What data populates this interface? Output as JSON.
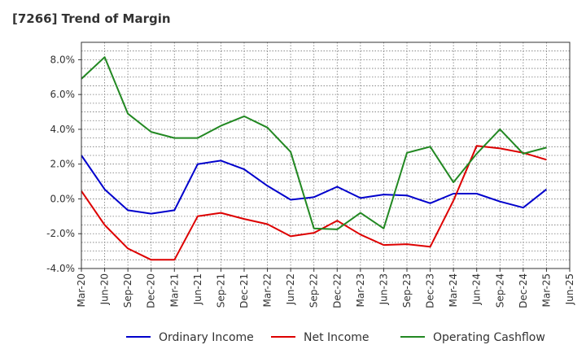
{
  "title": "[7266]  Trend of Margin",
  "chart_data": {
    "type": "line",
    "title": "[7266]  Trend of Margin",
    "xlabel": "",
    "ylabel": "",
    "ylim": [
      -4.0,
      9.0
    ],
    "yticks": [
      -4.0,
      -2.0,
      0.0,
      2.0,
      4.0,
      6.0,
      8.0
    ],
    "ytick_labels": [
      "-4.0%",
      "-2.0%",
      "0.0%",
      "2.0%",
      "4.0%",
      "6.0%",
      "8.0%"
    ],
    "grid": true,
    "legend_position": "bottom",
    "categories": [
      "Mar-20",
      "Jun-20",
      "Sep-20",
      "Dec-20",
      "Mar-21",
      "Jun-21",
      "Sep-21",
      "Dec-21",
      "Mar-22",
      "Jun-22",
      "Sep-22",
      "Dec-22",
      "Mar-23",
      "Jun-23",
      "Sep-23",
      "Dec-23",
      "Mar-24",
      "Jun-24",
      "Sep-24",
      "Dec-24",
      "Mar-25",
      "Jun-25"
    ],
    "series": [
      {
        "name": "Ordinary Income",
        "color": "#0000cc",
        "values": [
          2.5,
          0.55,
          -0.65,
          -0.85,
          -0.65,
          2.0,
          2.2,
          1.7,
          0.75,
          -0.05,
          0.1,
          0.7,
          0.05,
          0.25,
          0.2,
          -0.25,
          0.3,
          0.3,
          -0.15,
          -0.5,
          0.55,
          null
        ]
      },
      {
        "name": "Net Income",
        "color": "#dd0000",
        "values": [
          0.45,
          -1.5,
          -2.85,
          -3.5,
          -3.5,
          -1.0,
          -0.8,
          -1.15,
          -1.45,
          -2.15,
          -1.95,
          -1.25,
          -2.05,
          -2.65,
          -2.6,
          -2.75,
          -0.1,
          3.05,
          2.9,
          2.65,
          2.25,
          null
        ]
      },
      {
        "name": "Operating Cashflow",
        "color": "#228822",
        "values": [
          6.9,
          8.15,
          4.9,
          3.85,
          3.5,
          3.5,
          4.2,
          4.75,
          4.1,
          2.7,
          -1.7,
          -1.75,
          -0.8,
          -1.7,
          2.65,
          3.0,
          0.95,
          2.6,
          4.0,
          2.6,
          2.95,
          null
        ]
      }
    ]
  }
}
